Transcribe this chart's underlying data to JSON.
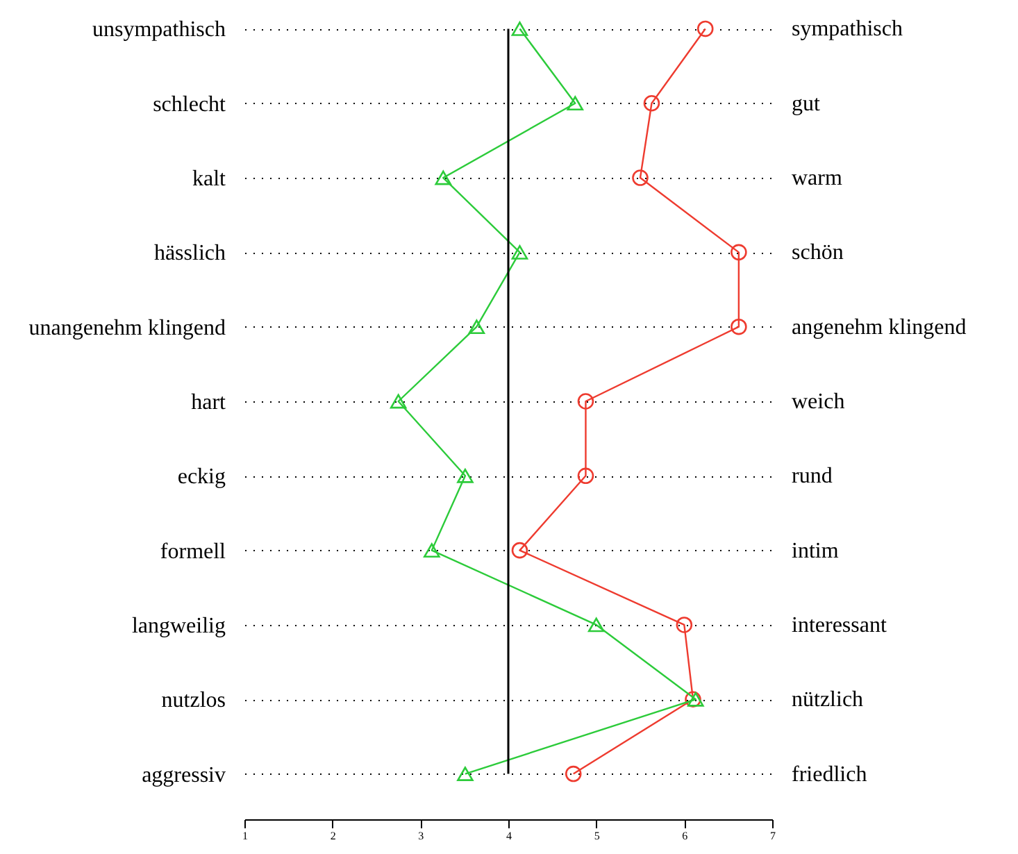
{
  "chart_data": {
    "type": "line",
    "orientation": "horizontal",
    "categories": [
      "unsympathisch",
      "schlecht",
      "kalt",
      "hässlich",
      "unangenehm klingend",
      "hart",
      "eckig",
      "formell",
      "langweilig",
      "nutzlos",
      "aggressiv"
    ],
    "y2_categories": [
      "sympathisch",
      "gut",
      "warm",
      "schön",
      "angenehm klingend",
      "weich",
      "rund",
      "intim",
      "interessant",
      "nützlich",
      "friedlich"
    ],
    "series": [
      {
        "color": "#ee3b2f",
        "marker": "circle",
        "values": [
          6.24,
          5.63,
          5.5,
          6.62,
          6.62,
          4.88,
          4.88,
          4.13,
          6.0,
          6.1,
          4.74
        ]
      },
      {
        "color": "#2ccb3a",
        "marker": "triangle",
        "values": [
          4.13,
          4.76,
          3.26,
          4.13,
          3.64,
          2.75,
          3.51,
          3.13,
          5.0,
          6.13,
          3.51
        ]
      }
    ],
    "xlim": [
      1,
      7
    ],
    "xticks": [
      1,
      2,
      3,
      4,
      5,
      6,
      7
    ],
    "grid": "y",
    "ref_lines": [
      {
        "axis": "x",
        "value": 4,
        "color": "#000000"
      }
    ]
  }
}
